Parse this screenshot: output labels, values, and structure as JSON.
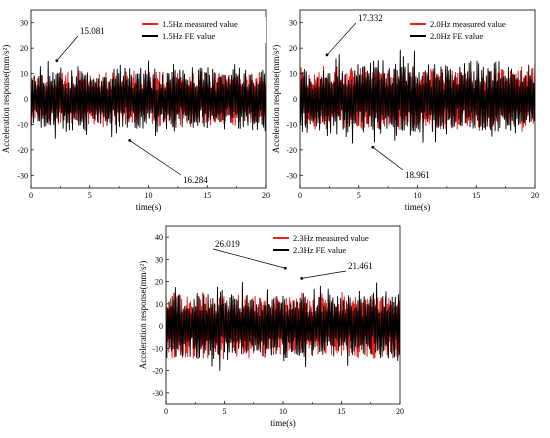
{
  "colors": {
    "measured": "#e8201e",
    "fe": "#000000"
  },
  "chart_data": [
    {
      "type": "line",
      "xlabel": "time(s)",
      "ylabel": "Acceleration response(mm/s²)",
      "xlim": [
        0,
        20
      ],
      "ylim": [
        -35,
        35
      ],
      "xticks": [
        "0",
        "5",
        "10",
        "15",
        "20"
      ],
      "yticks": [
        "-30",
        "-20",
        "-10",
        "0",
        "10",
        "20",
        "30"
      ],
      "series": [
        {
          "name": "1.5Hz measured value",
          "color": "#e8201e",
          "amplitude": 10
        },
        {
          "name": "1.5Hz FE value",
          "color": "#000000",
          "amplitude": 12
        }
      ],
      "annotations": [
        {
          "text": "15.081",
          "x": 2.2,
          "y": 15.081
        },
        {
          "text": "16.284",
          "x": 8.4,
          "y": -16.284
        }
      ]
    },
    {
      "type": "line",
      "xlabel": "time(s)",
      "ylabel": "Acceleration response(mm/s²)",
      "xlim": [
        0,
        20
      ],
      "ylim": [
        -35,
        35
      ],
      "xticks": [
        "0",
        "5",
        "10",
        "15",
        "20"
      ],
      "yticks": [
        "-30",
        "-20",
        "-10",
        "0",
        "10",
        "20",
        "30"
      ],
      "series": [
        {
          "name": "2.0Hz measured value",
          "color": "#e8201e",
          "amplitude": 12
        },
        {
          "name": "2.0Hz FE value",
          "color": "#000000",
          "amplitude": 14
        }
      ],
      "annotations": [
        {
          "text": "17.332",
          "x": 2.3,
          "y": 17.332
        },
        {
          "text": "18.961",
          "x": 6.2,
          "y": -18.961
        }
      ]
    },
    {
      "type": "line",
      "xlabel": "time(s)",
      "ylabel": "Acceleration response(mm/s²)",
      "xlim": [
        0,
        20
      ],
      "ylim": [
        -35,
        45
      ],
      "xticks": [
        "0",
        "5",
        "10",
        "15",
        "20"
      ],
      "yticks": [
        "-30",
        "-20",
        "-10",
        "0",
        "10",
        "20",
        "30",
        "40"
      ],
      "series": [
        {
          "name": "2.3Hz measured value",
          "color": "#e8201e",
          "amplitude": 14
        },
        {
          "name": "2.3Hz FE value",
          "color": "#000000",
          "amplitude": 15
        }
      ],
      "annotations": [
        {
          "text": "26.019",
          "x": 10.2,
          "y": 26.019
        },
        {
          "text": "21.461",
          "x": 11.6,
          "y": 21.461
        }
      ]
    }
  ]
}
